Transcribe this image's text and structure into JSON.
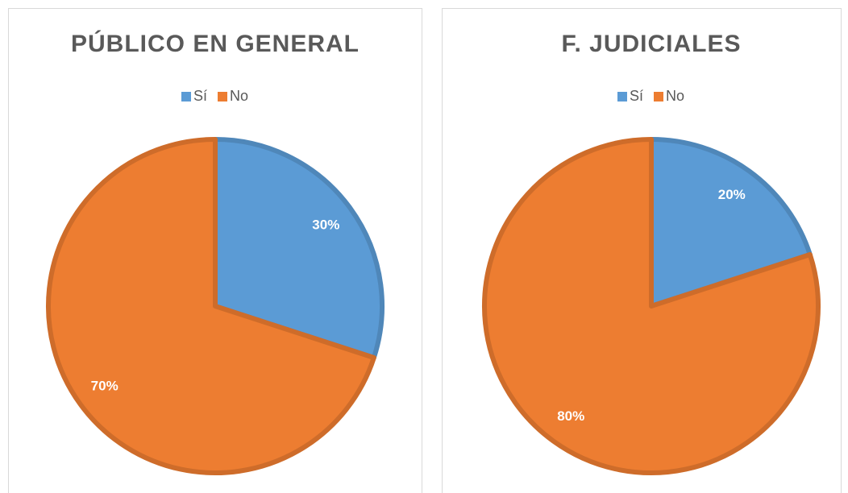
{
  "chart_data": [
    {
      "type": "pie",
      "title": "PÚBLICO EN GENERAL",
      "categories": [
        "Sí",
        "No"
      ],
      "values": [
        30,
        70
      ],
      "value_labels": [
        "30%",
        "70%"
      ],
      "colors": [
        "#5b9bd5",
        "#ed7d31"
      ],
      "legend": "top"
    },
    {
      "type": "pie",
      "title": "F. JUDICIALES",
      "categories": [
        "Sí",
        "No"
      ],
      "values": [
        20,
        80
      ],
      "value_labels": [
        "20%",
        "80%"
      ],
      "colors": [
        "#5b9bd5",
        "#ed7d31"
      ],
      "legend": "top"
    }
  ]
}
